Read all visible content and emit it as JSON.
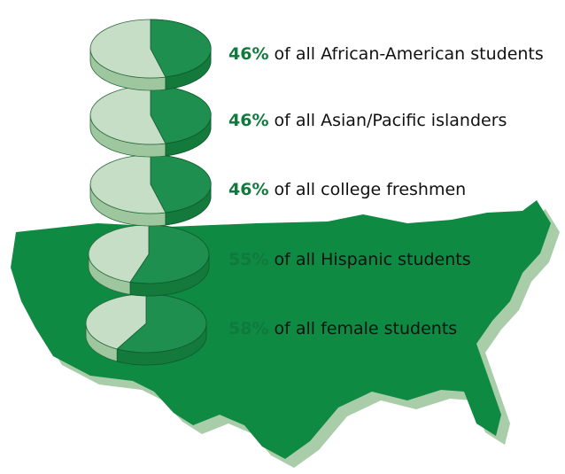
{
  "chart_data": {
    "type": "pie",
    "categories": [
      "of all African-American students",
      "of all Asian/Pacific islanders",
      "of all college freshmen",
      "of all Hispanic students",
      "of all female students"
    ],
    "values": [
      46,
      46,
      46,
      55,
      58
    ],
    "value_labels": [
      "46%",
      "46%",
      "46%",
      "55%",
      "58%"
    ],
    "colors": {
      "slice": "#1e8f4e",
      "rest": "#c6ddc6"
    }
  }
}
